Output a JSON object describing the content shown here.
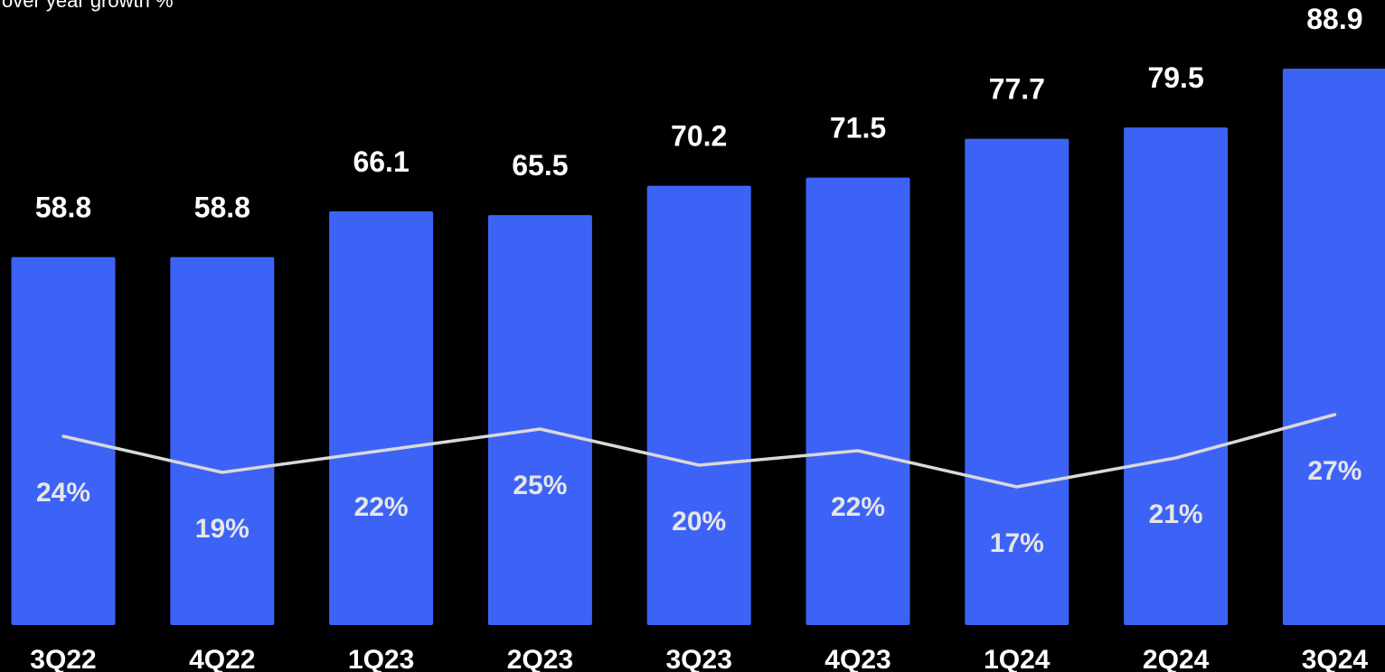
{
  "subtitle": "over year growth %",
  "colors": {
    "background": "#000000",
    "bar": "#3d63f6",
    "line": "#d9d9d9",
    "value_label": "#ffffff",
    "growth_label": "#e6e6e6",
    "category_label": "#ffffff"
  },
  "chart_data": {
    "type": "bar",
    "categories": [
      "3Q22",
      "4Q22",
      "1Q23",
      "2Q23",
      "3Q23",
      "4Q23",
      "1Q24",
      "2Q24",
      "3Q24"
    ],
    "values": [
      58.8,
      58.8,
      66.1,
      65.5,
      70.2,
      71.5,
      77.7,
      79.5,
      88.9
    ],
    "value_labels": [
      "58.8",
      "58.8",
      "66.1",
      "65.5",
      "70.2",
      "71.5",
      "77.7",
      "79.5",
      "88.9"
    ],
    "growth": [
      24,
      19,
      22,
      25,
      20,
      22,
      17,
      21,
      27
    ],
    "growth_labels": [
      "24%",
      "19%",
      "22%",
      "25%",
      "20%",
      "22%",
      "17%",
      "21%",
      "27%"
    ],
    "series": [
      {
        "type": "bar",
        "values": [
          58.8,
          58.8,
          66.1,
          65.5,
          70.2,
          71.5,
          77.7,
          79.5,
          88.9
        ]
      },
      {
        "type": "line",
        "values": [
          24,
          19,
          22,
          25,
          20,
          22,
          17,
          21,
          27
        ]
      }
    ],
    "title": "",
    "xlabel": "",
    "ylabel": "",
    "ylim": [
      0,
      88.9
    ],
    "grid": false,
    "legend": "none"
  }
}
